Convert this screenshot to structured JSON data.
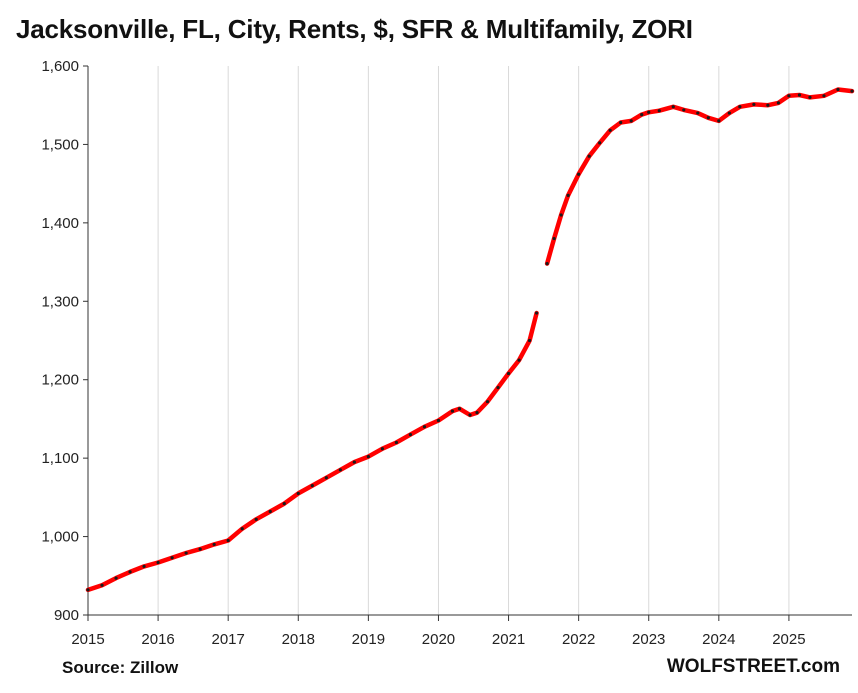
{
  "title": "Jacksonville, FL, City, Rents, $, SFR & Multifamily, ZORI",
  "source": "Source: Zillow",
  "brand": "WOLFSTREET.com",
  "colors": {
    "line": "#ff0000",
    "marker": "#1a1a1a",
    "grid": "#d9d9d9",
    "axis": "#333333"
  },
  "chart_data": {
    "type": "line",
    "title": "Jacksonville, FL, City, Rents, $, SFR & Multifamily, ZORI",
    "xlabel": "",
    "ylabel": "",
    "xlim": [
      2015,
      2025.9
    ],
    "ylim": [
      900,
      1600
    ],
    "y_ticks": [
      900,
      1000,
      1100,
      1200,
      1300,
      1400,
      1500,
      1600
    ],
    "y_tick_labels": [
      "900",
      "1,000",
      "1,100",
      "1,200",
      "1,300",
      "1,400",
      "1,500",
      "1,600"
    ],
    "x_ticks": [
      2015,
      2016,
      2017,
      2018,
      2019,
      2020,
      2021,
      2022,
      2023,
      2024,
      2025
    ],
    "x_tick_labels": [
      "2015",
      "2016",
      "2017",
      "2018",
      "2019",
      "2020",
      "2021",
      "2022",
      "2023",
      "2024",
      "2025"
    ],
    "grid": "vertical",
    "legend": "none",
    "series": [
      {
        "x": [
          2015.0,
          2015.2,
          2015.4,
          2015.6,
          2015.8,
          2016.0,
          2016.2,
          2016.4,
          2016.6,
          2016.8,
          2017.0,
          2017.2,
          2017.4,
          2017.6,
          2017.8,
          2018.0,
          2018.2,
          2018.4,
          2018.6,
          2018.8,
          2019.0,
          2019.2,
          2019.4,
          2019.6,
          2019.8,
          2020.0,
          2020.2,
          2020.3,
          2020.45,
          2020.55,
          2020.7,
          2020.85,
          2021.0,
          2021.15,
          2021.3,
          2021.4
        ],
        "values": [
          932,
          938,
          947,
          955,
          962,
          967,
          973,
          979,
          984,
          990,
          995,
          1010,
          1022,
          1032,
          1042,
          1055,
          1065,
          1075,
          1085,
          1095,
          1102,
          1112,
          1120,
          1130,
          1140,
          1148,
          1160,
          1163,
          1155,
          1158,
          1172,
          1190,
          1208,
          1225,
          1250,
          1285
        ]
      },
      {
        "x": [
          2021.55,
          2021.65,
          2021.75,
          2021.85,
          2022.0,
          2022.15,
          2022.3,
          2022.45,
          2022.6,
          2022.75,
          2022.9,
          2023.0,
          2023.15,
          2023.35,
          2023.5,
          2023.7,
          2023.85,
          2024.0,
          2024.15,
          2024.3,
          2024.5,
          2024.7,
          2024.85,
          2025.0,
          2025.15,
          2025.3,
          2025.5,
          2025.7,
          2025.9
        ],
        "values": [
          1348,
          1380,
          1410,
          1435,
          1462,
          1485,
          1502,
          1518,
          1528,
          1530,
          1538,
          1541,
          1543,
          1548,
          1544,
          1540,
          1534,
          1530,
          1540,
          1548,
          1551,
          1550,
          1553,
          1562,
          1563,
          1560,
          1562,
          1570,
          1568
        ]
      }
    ]
  }
}
